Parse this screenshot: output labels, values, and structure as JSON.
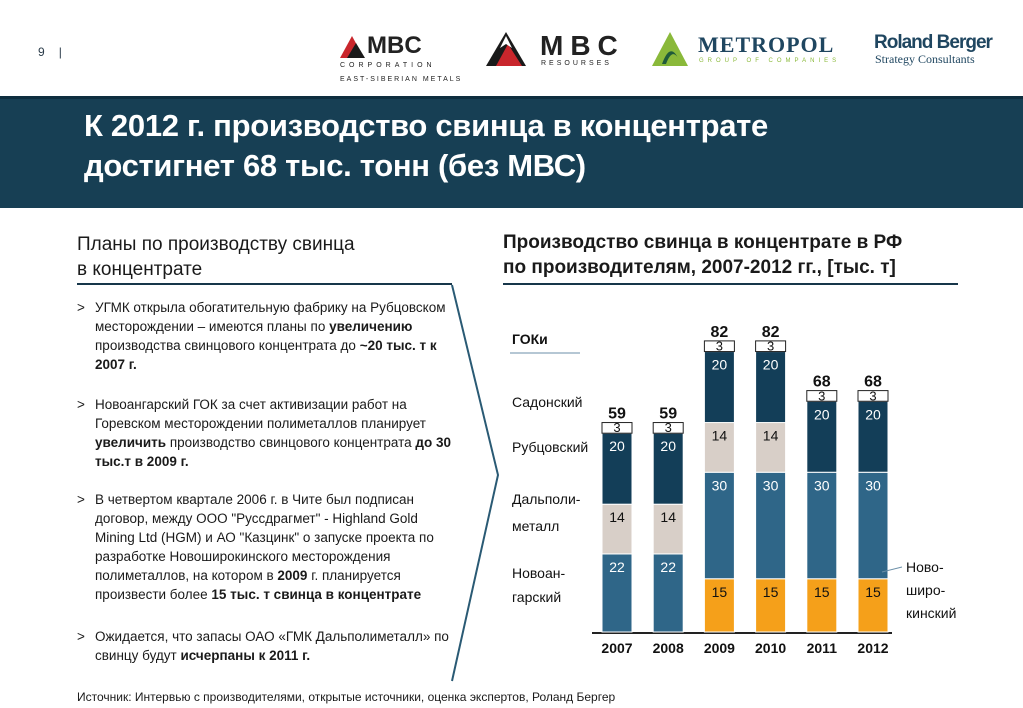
{
  "page_number": "9",
  "logos": {
    "mbc_corp_name": "MBC",
    "mbc_corp_sub": "CORPORATION",
    "mbc_corp_tag": "EAST-SIBERIAN METALS",
    "mbc_res_name": "MBC",
    "mbc_res_sub": "RESOURSES",
    "metropol_name": "METROPOL",
    "metropol_sub": "GROUP OF COMPANIES",
    "rb_name": "Roland Berger",
    "rb_sub": "Strategy Consultants"
  },
  "title_line1": "К 2012 г. производство свинца в концентрате",
  "title_line2": "достигнет 68 тыс. тонн (без МВС)",
  "left": {
    "heading_line1": "Планы по производству свинца",
    "heading_line2": "в концентрате",
    "bullet_mark": ">",
    "bullets": [
      {
        "p1": "УГМК открыла обогатительную фабрику на Рубцовском месторождении – имеются планы по ",
        "b1": "увеличению",
        "p2": " производства свинцового концентрата до ",
        "b2": "~20 тыс. т к  2007 г.",
        "p3": ""
      },
      {
        "p1": "Новоангарский ГОК за счет активизации работ на Горевском месторождении полиметаллов планирует ",
        "b1": "увеличить",
        "p2": " производство свинцового концентрата ",
        "b2": "до 30 тыс.т в 2009 г.",
        "p3": ""
      },
      {
        "p1": "В четвертом квартале 2006 г. в Чите был подписан договор, между ООО \"Руссдрагмет\" - Highland Gold Mining Ltd (HGM) и АО \"Казцинк\" о запуске проекта по разработке Новоширокинского месторождения полиметаллов, на котором в ",
        "b1": "2009",
        "p2": " г. планируется произвести более ",
        "b2": "15 тыс. т свинца в концентрате",
        "p3": ""
      },
      {
        "p1": "Ожидается, что запасы ОАО «ГМК Дальполиметалл» по свинцу будут ",
        "b1": "исчерпаны к 2011 г.",
        "p2": "",
        "b2": "",
        "p3": ""
      }
    ]
  },
  "right": {
    "heading_line1": "Производство свинца в концентрате в РФ",
    "heading_line2": "по производителям, 2007-2012 гг., [тыс. т]"
  },
  "source": "Источник: Интервью с производителями, открытые источники, оценка экспертов, Роланд Бергер",
  "chart_data": {
    "type": "bar",
    "stacked": true,
    "title": "Производство свинца в концентрате в РФ по производителям, 2007-2012 гг., [тыс. т]",
    "legend_header": "ГОКи",
    "categories": [
      "2007",
      "2008",
      "2009",
      "2010",
      "2011",
      "2012"
    ],
    "totals": [
      59,
      59,
      82,
      82,
      68,
      68
    ],
    "series": [
      {
        "name": "Новоширокинский",
        "label_lines": [
          "Ново-",
          "широ-",
          "кинский"
        ],
        "color": "#f5a01a",
        "values": [
          0,
          0,
          15,
          15,
          15,
          15
        ]
      },
      {
        "name": "Новоангарский",
        "label_lines": [
          "Новоан-",
          "гарский"
        ],
        "color": "#2f6688",
        "values": [
          22,
          22,
          30,
          30,
          30,
          30
        ]
      },
      {
        "name": "Дальполиметалл",
        "label_lines": [
          "Дальполи-",
          "металл"
        ],
        "color": "#d8cfc8",
        "values": [
          14,
          14,
          14,
          14,
          0,
          0
        ]
      },
      {
        "name": "Рубцовский",
        "label_lines": [
          "Рубцовский"
        ],
        "color": "#133e58",
        "values": [
          20,
          20,
          20,
          20,
          20,
          20
        ]
      },
      {
        "name": "Садонский",
        "label_lines": [
          "Садонский"
        ],
        "color": "#ffffff",
        "values": [
          3,
          3,
          3,
          3,
          3,
          3
        ]
      }
    ]
  }
}
